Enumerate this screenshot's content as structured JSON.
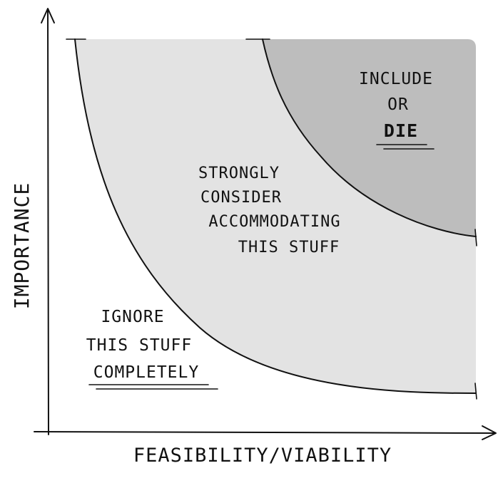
{
  "axes": {
    "x_label": "FEASIBILITY/VIABILITY",
    "y_label": "IMPORTANCE"
  },
  "regions": {
    "ignore": {
      "lines": [
        "IGNORE",
        "THIS STUFF",
        "COMPLETELY"
      ]
    },
    "consider": {
      "lines": [
        "STRONGLY",
        "CONSIDER",
        "ACCOMMODATING",
        "THIS STUFF"
      ]
    },
    "include": {
      "lines": [
        "INCLUDE",
        "OR",
        "DIE"
      ]
    }
  },
  "colors": {
    "background": "#ffffff",
    "light_zone": "#e3e3e3",
    "dark_zone": "#bdbdbd",
    "ink": "#111111"
  }
}
